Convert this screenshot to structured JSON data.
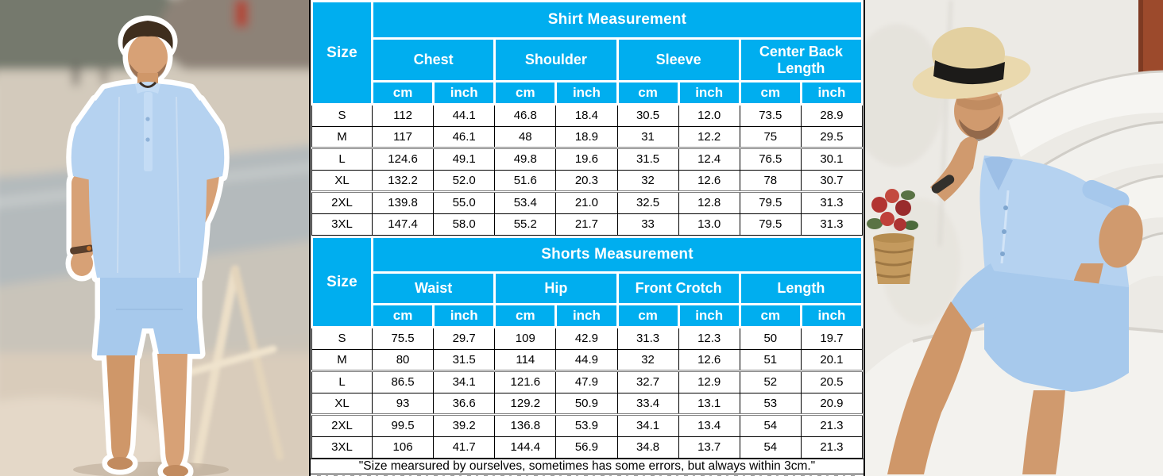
{
  "colors": {
    "accent": "#00AEEF",
    "outfit_blue": "#b5d2f0",
    "outfit_blue_dark": "#a7c9ec",
    "skin": "#d7a176",
    "skin_dark": "#cf9769"
  },
  "left_photo": {
    "description": "Man standing on a blurred beach wearing a light blue linen henley shirt and matching shorts, white cut-out outline"
  },
  "right_photo": {
    "description": "Man in a straw hat with black band sitting on white steps wearing the light blue shirt and shorts set, red flowers in a woven basket"
  },
  "shirt_table": {
    "size_header": "Size",
    "title": "Shirt Measurement",
    "groups": [
      "Chest",
      "Shoulder",
      "Sleeve",
      "Center Back Length"
    ],
    "units": [
      "cm",
      "inch",
      "cm",
      "inch",
      "cm",
      "inch",
      "cm",
      "inch"
    ],
    "rows": [
      {
        "size": "S",
        "values": [
          "112",
          "44.1",
          "46.8",
          "18.4",
          "30.5",
          "12.0",
          "73.5",
          "28.9"
        ]
      },
      {
        "size": "M",
        "values": [
          "117",
          "46.1",
          "48",
          "18.9",
          "31",
          "12.2",
          "75",
          "29.5"
        ]
      },
      {
        "size": "L",
        "values": [
          "124.6",
          "49.1",
          "49.8",
          "19.6",
          "31.5",
          "12.4",
          "76.5",
          "30.1"
        ]
      },
      {
        "size": "XL",
        "values": [
          "132.2",
          "52.0",
          "51.6",
          "20.3",
          "32",
          "12.6",
          "78",
          "30.7"
        ]
      },
      {
        "size": "2XL",
        "values": [
          "139.8",
          "55.0",
          "53.4",
          "21.0",
          "32.5",
          "12.8",
          "79.5",
          "31.3"
        ]
      },
      {
        "size": "3XL",
        "values": [
          "147.4",
          "58.0",
          "55.2",
          "21.7",
          "33",
          "13.0",
          "79.5",
          "31.3"
        ]
      }
    ]
  },
  "shorts_table": {
    "size_header": "Size",
    "title": "Shorts Measurement",
    "groups": [
      "Waist",
      "Hip",
      "Front Crotch",
      "Length"
    ],
    "units": [
      "cm",
      "inch",
      "cm",
      "inch",
      "cm",
      "inch",
      "cm",
      "inch"
    ],
    "rows": [
      {
        "size": "S",
        "values": [
          "75.5",
          "29.7",
          "109",
          "42.9",
          "31.3",
          "12.3",
          "50",
          "19.7"
        ]
      },
      {
        "size": "M",
        "values": [
          "80",
          "31.5",
          "114",
          "44.9",
          "32",
          "12.6",
          "51",
          "20.1"
        ]
      },
      {
        "size": "L",
        "values": [
          "86.5",
          "34.1",
          "121.6",
          "47.9",
          "32.7",
          "12.9",
          "52",
          "20.5"
        ]
      },
      {
        "size": "XL",
        "values": [
          "93",
          "36.6",
          "129.2",
          "50.9",
          "33.4",
          "13.1",
          "53",
          "20.9"
        ]
      },
      {
        "size": "2XL",
        "values": [
          "99.5",
          "39.2",
          "136.8",
          "53.9",
          "34.1",
          "13.4",
          "54",
          "21.3"
        ]
      },
      {
        "size": "3XL",
        "values": [
          "106",
          "41.7",
          "144.4",
          "56.9",
          "34.8",
          "13.7",
          "54",
          "21.3"
        ]
      }
    ]
  },
  "note": "\"Size mearsured by ourselves, sometimes has some errors, but always within 3cm.\""
}
